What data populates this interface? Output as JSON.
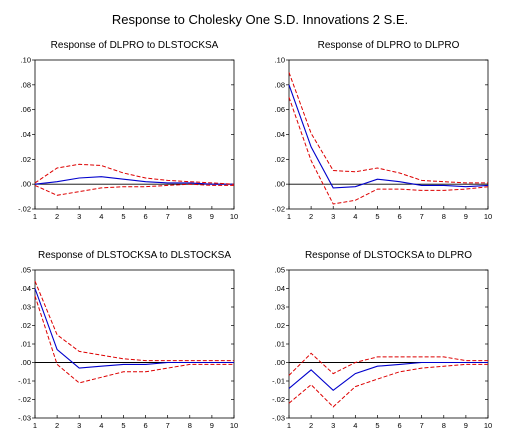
{
  "figure": {
    "title": "Response to Cholesky One S.D. Innovations    2 S.E."
  },
  "colors": {
    "response": "#0000cc",
    "band": "#dd0000",
    "zero": "#000000",
    "frame": "#000000"
  },
  "chart_data": [
    {
      "type": "line",
      "title": "Response of DLPRO to DLSTOCKSA",
      "x": [
        1,
        2,
        3,
        4,
        5,
        6,
        7,
        8,
        9,
        10
      ],
      "x_tick_labels": [
        "1",
        "2",
        "3",
        "4",
        "5",
        "6",
        "7",
        "8",
        "9",
        "10"
      ],
      "ylim": [
        -0.02,
        0.1
      ],
      "y_ticks": [
        -0.02,
        0.0,
        0.02,
        0.04,
        0.06,
        0.08,
        0.1
      ],
      "y_tick_labels": [
        "-.02",
        ".00",
        ".02",
        ".04",
        ".06",
        ".08",
        ".10"
      ],
      "zero_line": true,
      "series": [
        {
          "role": "response",
          "values": [
            0.0,
            0.002,
            0.005,
            0.006,
            0.004,
            0.002,
            0.001,
            0.001,
            0.0,
            0.0
          ]
        },
        {
          "role": "upper",
          "values": [
            0.001,
            0.013,
            0.016,
            0.015,
            0.009,
            0.005,
            0.003,
            0.002,
            0.001,
            0.0
          ]
        },
        {
          "role": "lower",
          "values": [
            -0.001,
            -0.009,
            -0.006,
            -0.003,
            -0.002,
            -0.002,
            -0.001,
            0.0,
            -0.001,
            -0.001
          ]
        }
      ]
    },
    {
      "type": "line",
      "title": "Response of DLPRO to DLPRO",
      "x": [
        1,
        2,
        3,
        4,
        5,
        6,
        7,
        8,
        9,
        10
      ],
      "x_tick_labels": [
        "1",
        "2",
        "3",
        "4",
        "5",
        "6",
        "7",
        "8",
        "9",
        "10"
      ],
      "ylim": [
        -0.02,
        0.1
      ],
      "y_ticks": [
        -0.02,
        0.0,
        0.02,
        0.04,
        0.06,
        0.08,
        0.1
      ],
      "y_tick_labels": [
        "-.02",
        ".00",
        ".02",
        ".04",
        ".06",
        ".08",
        ".10"
      ],
      "zero_line": true,
      "series": [
        {
          "role": "response",
          "values": [
            0.08,
            0.03,
            -0.003,
            -0.002,
            0.004,
            0.002,
            -0.001,
            -0.001,
            -0.002,
            -0.001
          ]
        },
        {
          "role": "upper",
          "values": [
            0.09,
            0.041,
            0.011,
            0.01,
            0.013,
            0.009,
            0.003,
            0.002,
            0.001,
            0.001
          ]
        },
        {
          "role": "lower",
          "values": [
            0.07,
            0.019,
            -0.016,
            -0.013,
            -0.004,
            -0.004,
            -0.005,
            -0.005,
            -0.004,
            -0.002
          ]
        }
      ]
    },
    {
      "type": "line",
      "title": "Response of DLSTOCKSA to DLSTOCKSA",
      "x": [
        1,
        2,
        3,
        4,
        5,
        6,
        7,
        8,
        9,
        10
      ],
      "x_tick_labels": [
        "1",
        "2",
        "3",
        "4",
        "5",
        "6",
        "7",
        "8",
        "9",
        "10"
      ],
      "ylim": [
        -0.03,
        0.05
      ],
      "y_ticks": [
        -0.03,
        -0.02,
        -0.01,
        0.0,
        0.01,
        0.02,
        0.03,
        0.04,
        0.05
      ],
      "y_tick_labels": [
        "-.03",
        "-.02",
        "-.01",
        ".00",
        ".01",
        ".02",
        ".03",
        ".04",
        ".05"
      ],
      "zero_line": true,
      "series": [
        {
          "role": "response",
          "values": [
            0.04,
            0.007,
            -0.003,
            -0.002,
            -0.001,
            -0.001,
            0.0,
            0.0,
            0.0,
            0.0
          ]
        },
        {
          "role": "upper",
          "values": [
            0.044,
            0.015,
            0.006,
            0.004,
            0.002,
            0.001,
            0.001,
            0.001,
            0.001,
            0.001
          ]
        },
        {
          "role": "lower",
          "values": [
            0.036,
            -0.001,
            -0.011,
            -0.008,
            -0.005,
            -0.005,
            -0.003,
            -0.001,
            -0.001,
            -0.001
          ]
        }
      ]
    },
    {
      "type": "line",
      "title": "Response of DLSTOCKSA to DLPRO",
      "x": [
        1,
        2,
        3,
        4,
        5,
        6,
        7,
        8,
        9,
        10
      ],
      "x_tick_labels": [
        "1",
        "2",
        "3",
        "4",
        "5",
        "6",
        "7",
        "8",
        "9",
        "10"
      ],
      "ylim": [
        -0.03,
        0.05
      ],
      "y_ticks": [
        -0.03,
        -0.02,
        -0.01,
        0.0,
        0.01,
        0.02,
        0.03,
        0.04,
        0.05
      ],
      "y_tick_labels": [
        "-.03",
        "-.02",
        "-.01",
        ".00",
        ".01",
        ".02",
        ".03",
        ".04",
        ".05"
      ],
      "zero_line": true,
      "series": [
        {
          "role": "response",
          "values": [
            -0.014,
            -0.004,
            -0.015,
            -0.006,
            -0.002,
            -0.001,
            0.0,
            0.0,
            0.0,
            0.0
          ]
        },
        {
          "role": "upper",
          "values": [
            -0.007,
            0.005,
            -0.006,
            0.0,
            0.003,
            0.003,
            0.003,
            0.003,
            0.001,
            0.001
          ]
        },
        {
          "role": "lower",
          "values": [
            -0.022,
            -0.012,
            -0.024,
            -0.013,
            -0.009,
            -0.005,
            -0.003,
            -0.002,
            -0.001,
            -0.001
          ]
        }
      ]
    }
  ]
}
